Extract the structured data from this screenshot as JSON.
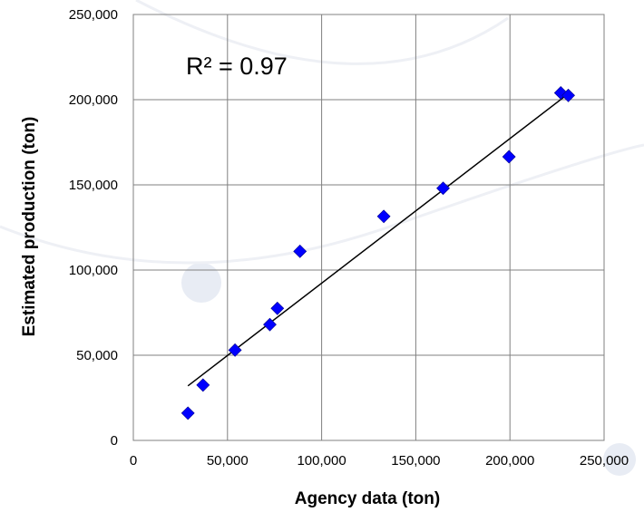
{
  "chart_data": {
    "type": "scatter",
    "xlabel": "Agency data (ton)",
    "ylabel": "Estimated production (ton)",
    "xlim": [
      0,
      250000
    ],
    "ylim": [
      0,
      250000
    ],
    "x_ticks": [
      "0",
      "50,000",
      "100,000",
      "150,000",
      "200,000",
      "250,000"
    ],
    "y_ticks": [
      "0",
      "50,000",
      "100,000",
      "150,000",
      "200,000",
      "250,000"
    ],
    "grid": true,
    "annotation": "R² = 0.97",
    "points": [
      {
        "x": 29000,
        "y": 16000
      },
      {
        "x": 37000,
        "y": 32500
      },
      {
        "x": 54000,
        "y": 53000
      },
      {
        "x": 72500,
        "y": 68000
      },
      {
        "x": 76500,
        "y": 77500
      },
      {
        "x": 88500,
        "y": 111000
      },
      {
        "x": 133000,
        "y": 131500
      },
      {
        "x": 164500,
        "y": 148000
      },
      {
        "x": 199500,
        "y": 166500
      },
      {
        "x": 227000,
        "y": 204000
      },
      {
        "x": 231000,
        "y": 202500
      }
    ],
    "trendline": {
      "x": [
        29000,
        231000
      ],
      "y": [
        32000,
        203500
      ]
    },
    "marker_color": "#0000ff",
    "trendline_color": "#000000",
    "grid_color": "#808080"
  }
}
